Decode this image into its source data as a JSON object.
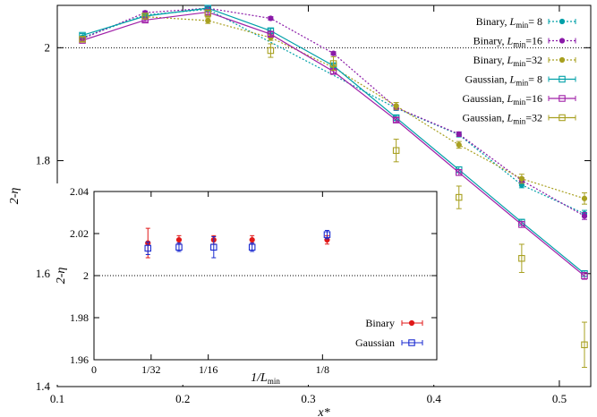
{
  "chart_data": [
    {
      "type": "line",
      "title": "",
      "xlabel": "x*",
      "ylabel": "2-η",
      "xlim": [
        0.1,
        0.525
      ],
      "ylim": [
        1.4,
        2.075
      ],
      "x_ticks": [
        0.1,
        0.2,
        0.3,
        0.4,
        0.5
      ],
      "x_tick_labels": [
        "0.1",
        "0.2",
        "0.3",
        "0.4",
        "0.5"
      ],
      "y_ticks": [
        1.4,
        1.6,
        1.8,
        2.0
      ],
      "y_tick_labels": [
        "1.4",
        "1.6",
        "1.8",
        "2"
      ],
      "reference_line_y": 2.0,
      "legend_position": "top-right",
      "series": [
        {
          "name": "Binary, Lmin= 8",
          "legend_prefix": "Binary, ",
          "legend_suffix": "= 8",
          "style": "dotted",
          "marker": "filled-circle",
          "color": "#00a0a8",
          "x": [
            0.12,
            0.17,
            0.22,
            0.37,
            0.42,
            0.47,
            0.52
          ],
          "y": [
            2.018,
            2.058,
            2.068,
            1.893,
            1.846,
            1.757,
            1.706
          ],
          "err": [
            0.003,
            0.003,
            0.003,
            0.004,
            0.004,
            0.005,
            0.006
          ]
        },
        {
          "name": "Binary, Lmin=16",
          "legend_prefix": "Binary, ",
          "legend_suffix": "=16",
          "style": "dotted",
          "marker": "filled-circle",
          "color": "#8a1aa8",
          "x": [
            0.12,
            0.17,
            0.22,
            0.27,
            0.32,
            0.37,
            0.42,
            0.47,
            0.52
          ],
          "y": [
            2.016,
            2.062,
            2.07,
            2.052,
            1.99,
            1.894,
            1.847,
            1.765,
            1.702
          ],
          "err": [
            0.003,
            0.003,
            0.003,
            0.003,
            0.003,
            0.004,
            0.004,
            0.005,
            0.006
          ]
        },
        {
          "name": "Binary, Lmin=32",
          "legend_prefix": "Binary, ",
          "legend_suffix": "=32",
          "style": "dotted",
          "marker": "filled-circle",
          "color": "#a8a020",
          "x": [
            0.17,
            0.22,
            0.27,
            0.32,
            0.37,
            0.42,
            0.47,
            0.52
          ],
          "y": [
            2.055,
            2.048,
            2.018,
            1.965,
            1.897,
            1.828,
            1.768,
            1.733
          ],
          "err": [
            0.004,
            0.005,
            0.005,
            0.005,
            0.006,
            0.006,
            0.008,
            0.01
          ]
        },
        {
          "name": "Gaussian, Lmin= 8",
          "legend_prefix": "Gaussian, ",
          "legend_suffix": "= 8",
          "style": "solid",
          "marker": "open-square",
          "color": "#00a0a8",
          "x": [
            0.12,
            0.17,
            0.22,
            0.27,
            0.32,
            0.37,
            0.42,
            0.47,
            0.52
          ],
          "y": [
            2.022,
            2.056,
            2.07,
            2.03,
            1.968,
            1.876,
            1.784,
            1.691,
            1.6
          ],
          "err": [
            0.003,
            0.003,
            0.003,
            0.004,
            0.004,
            0.004,
            0.005,
            0.005,
            0.005
          ]
        },
        {
          "name": "Gaussian, Lmin=16",
          "legend_prefix": "Gaussian, ",
          "legend_suffix": "=16",
          "style": "solid",
          "marker": "open-square",
          "color": "#a020a8",
          "x": [
            0.12,
            0.17,
            0.22,
            0.27,
            0.32,
            0.37,
            0.42,
            0.47,
            0.52
          ],
          "y": [
            2.013,
            2.049,
            2.063,
            2.024,
            1.958,
            1.872,
            1.779,
            1.687,
            1.596
          ],
          "err": [
            0.003,
            0.003,
            0.004,
            0.004,
            0.004,
            0.004,
            0.005,
            0.005,
            0.006
          ]
        },
        {
          "name": "Gaussian, Lmin=32",
          "legend_prefix": "Gaussian, ",
          "legend_suffix": "=32",
          "style": "errorbar-only",
          "marker": "open-square",
          "color": "#a8a020",
          "x": [
            0.12,
            0.17,
            0.22,
            0.27,
            0.32,
            0.37,
            0.42,
            0.47,
            0.52
          ],
          "y": [
            2.015,
            2.056,
            2.061,
            1.995,
            1.972,
            1.818,
            1.735,
            1.627,
            1.474
          ],
          "err": [
            0.004,
            0.005,
            0.006,
            0.012,
            0.012,
            0.02,
            0.02,
            0.025,
            0.04
          ]
        }
      ]
    },
    {
      "type": "scatter",
      "title": "",
      "xlabel": "1/Lmin",
      "xlabel_prefix": "1/",
      "ylabel": "2-η",
      "xlim": [
        0,
        0.1875
      ],
      "ylim": [
        1.96,
        2.04
      ],
      "x_ticks": [
        0,
        0.03125,
        0.0625,
        0.125
      ],
      "x_tick_labels": [
        "0",
        "1/32",
        "1/16",
        "1/8"
      ],
      "y_ticks": [
        1.96,
        1.98,
        2.0,
        2.02,
        2.04
      ],
      "y_tick_labels": [
        "1.96",
        "1.98",
        "2",
        "2.02",
        "2.04"
      ],
      "reference_line_y": 2.0,
      "legend_position": "bottom-right",
      "series": [
        {
          "name": "Binary",
          "marker": "filled-circle",
          "color": "#e01818",
          "x": [
            0.0295,
            0.0465,
            0.0655,
            0.0865,
            0.1275
          ],
          "y": [
            2.0155,
            2.017,
            2.017,
            2.017,
            2.017
          ],
          "err": [
            0.007,
            0.002,
            0.002,
            0.002,
            0.002
          ]
        },
        {
          "name": "Gaussian",
          "marker": "open-square",
          "color": "#1a2ad0",
          "x": [
            0.0295,
            0.0465,
            0.0655,
            0.0865,
            0.1275
          ],
          "y": [
            2.013,
            2.0135,
            2.0135,
            2.0135,
            2.0195
          ],
          "err": [
            0.003,
            0.002,
            0.005,
            0.002,
            0.002
          ]
        }
      ]
    }
  ]
}
